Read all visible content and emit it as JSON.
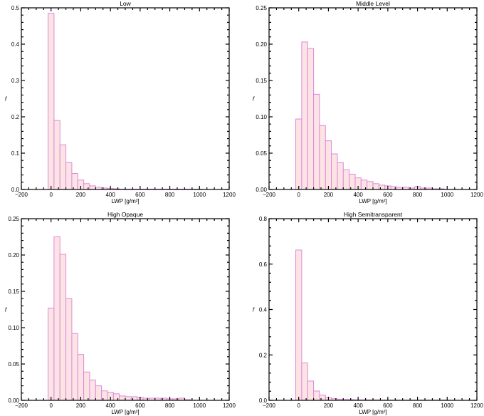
{
  "chart_data": [
    {
      "type": "bar",
      "title": "Low",
      "xlabel": "LWP [g/m²]",
      "ylabel": "f",
      "xlim": [
        -200,
        1200
      ],
      "ylim": [
        0,
        0.5
      ],
      "xticks": [
        -200,
        0,
        200,
        400,
        600,
        800,
        1000,
        1200
      ],
      "yticks": [
        "0.0",
        "0.1",
        "0.2",
        "0.3",
        "0.4",
        "0.5"
      ],
      "bin_start": -20,
      "bin_width": 40,
      "values": [
        0.485,
        0.19,
        0.123,
        0.074,
        0.044,
        0.026,
        0.016,
        0.01,
        0.006,
        0.004,
        0.003,
        0.002,
        0.001,
        0.001,
        0.001,
        0.001,
        0.001,
        0.001,
        0.001,
        0.001,
        0.001,
        0.001,
        0.001,
        0.001,
        0.001,
        0.001
      ],
      "grid": false
    },
    {
      "type": "bar",
      "title": "Middle Level",
      "xlabel": "LWP [g/m²]",
      "ylabel": "f",
      "xlim": [
        -200,
        1200
      ],
      "ylim": [
        0,
        0.25
      ],
      "xticks": [
        -200,
        0,
        200,
        400,
        600,
        800,
        1000,
        1200
      ],
      "yticks": [
        "0.00",
        "0.05",
        "0.10",
        "0.15",
        "0.20",
        "0.25"
      ],
      "bin_start": -20,
      "bin_width": 40,
      "values": [
        0.097,
        0.203,
        0.194,
        0.131,
        0.088,
        0.067,
        0.049,
        0.037,
        0.027,
        0.021,
        0.016,
        0.013,
        0.011,
        0.008,
        0.006,
        0.005,
        0.004,
        0.003,
        0.003,
        0.002,
        0.004,
        0.002,
        0.002,
        0.001,
        0.001
      ],
      "grid": false
    },
    {
      "type": "bar",
      "title": "High Opaque",
      "xlabel": "LWP [g/m²]",
      "ylabel": "f",
      "xlim": [
        -200,
        1200
      ],
      "ylim": [
        0,
        0.25
      ],
      "xticks": [
        -200,
        0,
        200,
        400,
        600,
        800,
        1000,
        1200
      ],
      "yticks": [
        "0.00",
        "0.05",
        "0.10",
        "0.15",
        "0.20",
        "0.25"
      ],
      "bin_start": -20,
      "bin_width": 40,
      "values": [
        0.127,
        0.225,
        0.201,
        0.14,
        0.092,
        0.063,
        0.039,
        0.028,
        0.02,
        0.013,
        0.011,
        0.009,
        0.006,
        0.005,
        0.005,
        0.004,
        0.003,
        0.003,
        0.003,
        0.003,
        0.002,
        0.002,
        0.003,
        0.001
      ],
      "grid": false
    },
    {
      "type": "bar",
      "title": "High Semitransparent",
      "xlabel": "LWP [g/m²]",
      "ylabel": "f",
      "xlim": [
        -200,
        1200
      ],
      "ylim": [
        0,
        0.8
      ],
      "xticks": [
        -200,
        0,
        200,
        400,
        600,
        800,
        1000,
        1200
      ],
      "yticks": [
        "0.0",
        "0.2",
        "0.4",
        "0.6",
        "0.8"
      ],
      "bin_start": -20,
      "bin_width": 40,
      "values": [
        0.662,
        0.165,
        0.085,
        0.041,
        0.023,
        0.012,
        0.007,
        0.005,
        0.004,
        0.003,
        0.002,
        0.002,
        0.002,
        0.002,
        0.001,
        0.001,
        0.001,
        0.001,
        0.001,
        0.001,
        0.001,
        0.001,
        0.001,
        0.001,
        0.001,
        0.001
      ],
      "grid": false
    }
  ],
  "style": {
    "bar_fill": "#fde4e4",
    "bar_edge": "#dd88dd",
    "axis_color": "#000000"
  }
}
